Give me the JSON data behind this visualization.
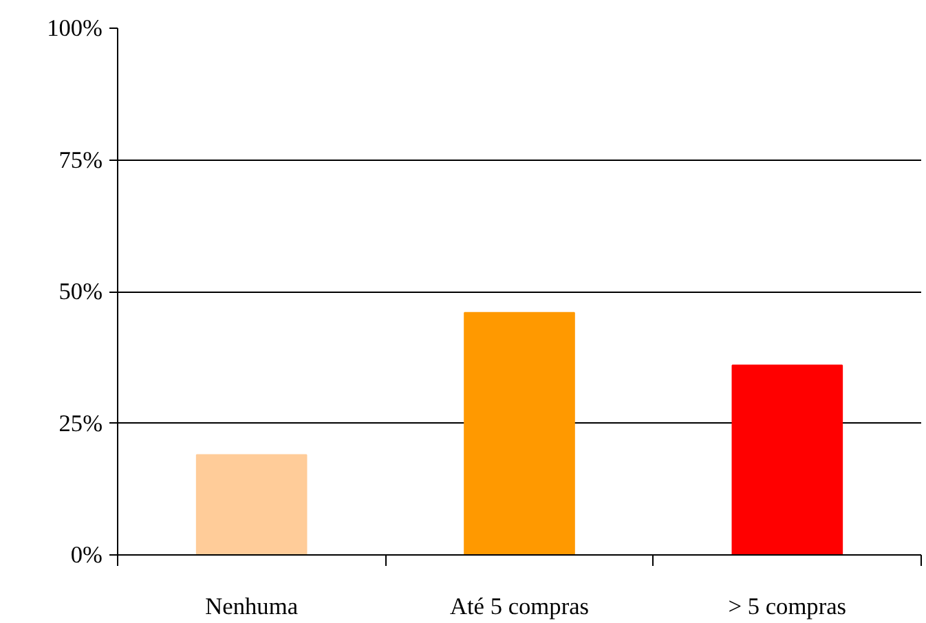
{
  "chart_data": {
    "type": "bar",
    "categories": [
      "Nenhuma",
      "Até 5 compras",
      "> 5 compras"
    ],
    "values": [
      19,
      46,
      36
    ],
    "colors": [
      "#ffcc99",
      "#ff9900",
      "#ff0000"
    ],
    "ylim": [
      0,
      100
    ],
    "yticks": [
      {
        "value": 0,
        "label": "0%"
      },
      {
        "value": 25,
        "label": "25%"
      },
      {
        "value": 50,
        "label": "50%"
      },
      {
        "value": 75,
        "label": "75%"
      },
      {
        "value": 100,
        "label": "100%"
      }
    ],
    "grid": "y"
  }
}
